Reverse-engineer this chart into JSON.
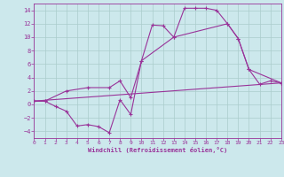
{
  "background_color": "#cce8ec",
  "line_color": "#993399",
  "grid_color": "#aacccc",
  "xlabel": "Windchill (Refroidissement éolien,°C)",
  "xlabel_color": "#993399",
  "tick_color": "#993399",
  "ylim": [
    -5,
    15
  ],
  "xlim": [
    0,
    23
  ],
  "yticks": [
    -4,
    -2,
    0,
    2,
    4,
    6,
    8,
    10,
    12,
    14
  ],
  "xticks": [
    0,
    1,
    2,
    3,
    4,
    5,
    6,
    7,
    8,
    9,
    10,
    11,
    12,
    13,
    14,
    15,
    16,
    17,
    18,
    19,
    20,
    21,
    22,
    23
  ],
  "line1_x": [
    0,
    1,
    2,
    3,
    4,
    5,
    6,
    7,
    8,
    9,
    10,
    11,
    12,
    13,
    14,
    15,
    16,
    17,
    18,
    19,
    20,
    21,
    22,
    23
  ],
  "line1_y": [
    0.5,
    0.5,
    -0.3,
    -1.0,
    -3.2,
    -3.0,
    -3.3,
    -4.2,
    0.7,
    -1.5,
    6.5,
    11.8,
    11.7,
    10.0,
    14.3,
    14.3,
    14.3,
    14.0,
    12.0,
    9.8,
    5.2,
    3.0,
    3.5,
    3.2
  ],
  "line2_x": [
    0,
    1,
    3,
    5,
    7,
    8,
    9,
    10,
    13,
    18,
    19,
    20,
    23
  ],
  "line2_y": [
    0.5,
    0.5,
    2.0,
    2.5,
    2.5,
    3.5,
    1.0,
    6.5,
    10.0,
    12.0,
    9.8,
    5.2,
    3.2
  ],
  "line3_x": [
    0,
    23
  ],
  "line3_y": [
    0.5,
    3.2
  ],
  "figsize": [
    3.2,
    2.0
  ],
  "dpi": 100
}
